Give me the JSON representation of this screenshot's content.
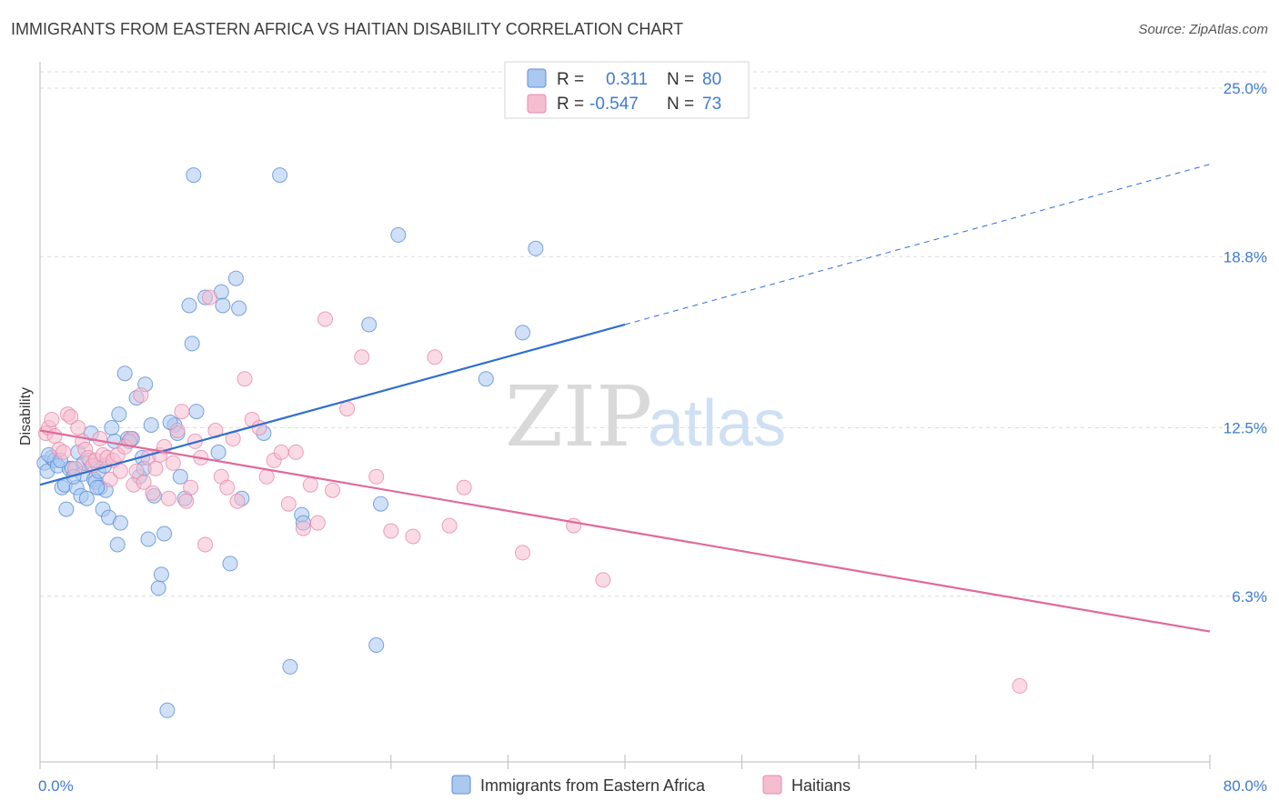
{
  "title": "IMMIGRANTS FROM EASTERN AFRICA VS HAITIAN DISABILITY CORRELATION CHART",
  "source": "Source: ZipAtlas.com",
  "watermark_zip": "ZIP",
  "watermark_atlas": "atlas",
  "colors": {
    "blue": "#5b8fd6",
    "blue_fill": "#aac8f0",
    "blue_line": "#2f6fcf",
    "pink": "#e88aa8",
    "pink_fill": "#f5bdd0",
    "pink_line": "#e0699a",
    "tick_label": "#3f7bd0",
    "grid": "#d8dce4"
  },
  "legend": {
    "row1": {
      "r_label": "R =",
      "r_value": "0.311",
      "n_label": "N =",
      "n_value": "80"
    },
    "row2": {
      "r_label": "R =",
      "r_value": "-0.547",
      "n_label": "N =",
      "n_value": "73"
    }
  },
  "chart_data": {
    "type": "scatter",
    "ylabel": "Disability",
    "xlim": [
      0,
      80
    ],
    "ylim": [
      0,
      26
    ],
    "x_ticks": [
      "0.0%",
      "80.0%"
    ],
    "y_ticks": [
      {
        "value": 25.0,
        "label": "25.0%"
      },
      {
        "value": 18.8,
        "label": "18.8%"
      },
      {
        "value": 12.5,
        "label": "12.5%"
      },
      {
        "value": 6.3,
        "label": "6.3%"
      }
    ],
    "grid": "horizontal dashed",
    "legend_position": "top-center",
    "series": [
      {
        "name": "Immigrants from Eastern Africa",
        "color": "blue",
        "trend": {
          "x0": 0,
          "y0": 10.4,
          "x1": 40,
          "y1": 16.3,
          "dash_to_x": 80,
          "dash_to_y": 22.2
        },
        "points": [
          [
            0.3,
            11.2
          ],
          [
            0.5,
            10.9
          ],
          [
            0.8,
            11.4
          ],
          [
            1.0,
            11.3
          ],
          [
            1.2,
            11.1
          ],
          [
            1.5,
            10.3
          ],
          [
            1.7,
            10.4
          ],
          [
            1.8,
            9.5
          ],
          [
            2.0,
            11.0
          ],
          [
            2.2,
            11.0
          ],
          [
            2.5,
            10.3
          ],
          [
            2.6,
            11.6
          ],
          [
            2.8,
            10.0
          ],
          [
            2.9,
            10.8
          ],
          [
            3.0,
            11.2
          ],
          [
            3.2,
            9.9
          ],
          [
            3.4,
            11.3
          ],
          [
            3.5,
            12.3
          ],
          [
            3.7,
            10.6
          ],
          [
            3.8,
            10.5
          ],
          [
            4.0,
            10.9
          ],
          [
            4.1,
            10.3
          ],
          [
            4.3,
            9.5
          ],
          [
            4.5,
            10.2
          ],
          [
            4.7,
            9.2
          ],
          [
            4.9,
            12.5
          ],
          [
            5.1,
            12.0
          ],
          [
            5.3,
            8.2
          ],
          [
            5.4,
            13.0
          ],
          [
            5.5,
            9.0
          ],
          [
            5.8,
            14.5
          ],
          [
            6.0,
            12.1
          ],
          [
            6.3,
            12.1
          ],
          [
            6.6,
            13.6
          ],
          [
            6.8,
            10.7
          ],
          [
            7.0,
            11.4
          ],
          [
            7.2,
            14.1
          ],
          [
            7.4,
            8.4
          ],
          [
            7.6,
            12.6
          ],
          [
            7.8,
            10.0
          ],
          [
            8.1,
            6.6
          ],
          [
            8.3,
            7.1
          ],
          [
            8.5,
            8.6
          ],
          [
            8.7,
            2.1
          ],
          [
            9.2,
            12.6
          ],
          [
            9.4,
            12.3
          ],
          [
            9.6,
            10.7
          ],
          [
            10.2,
            17.0
          ],
          [
            10.4,
            15.6
          ],
          [
            10.5,
            21.8
          ],
          [
            10.7,
            13.1
          ],
          [
            11.3,
            17.3
          ],
          [
            12.2,
            11.6
          ],
          [
            12.4,
            17.5
          ],
          [
            12.5,
            17.0
          ],
          [
            13.0,
            7.5
          ],
          [
            13.4,
            18.0
          ],
          [
            13.6,
            16.9
          ],
          [
            13.8,
            9.9
          ],
          [
            15.3,
            12.3
          ],
          [
            16.4,
            21.8
          ],
          [
            17.1,
            3.7
          ],
          [
            17.9,
            9.3
          ],
          [
            18.0,
            9.0
          ],
          [
            22.5,
            16.3
          ],
          [
            23.0,
            4.5
          ],
          [
            23.3,
            9.7
          ],
          [
            24.5,
            19.6
          ],
          [
            30.5,
            14.3
          ],
          [
            33.0,
            16.0
          ],
          [
            33.9,
            19.1
          ],
          [
            0.6,
            11.5
          ],
          [
            1.4,
            11.3
          ],
          [
            2.3,
            10.7
          ],
          [
            3.9,
            10.3
          ],
          [
            6.1,
            12.0
          ],
          [
            7.1,
            11.0
          ],
          [
            8.9,
            12.7
          ],
          [
            9.9,
            9.9
          ],
          [
            4.4,
            11.1
          ]
        ]
      },
      {
        "name": "Haitians",
        "color": "pink",
        "trend": {
          "x0": 0,
          "y0": 12.4,
          "x1": 80,
          "y1": 5.0
        },
        "points": [
          [
            0.4,
            12.3
          ],
          [
            0.6,
            12.5
          ],
          [
            0.8,
            12.8
          ],
          [
            1.0,
            12.2
          ],
          [
            1.3,
            11.7
          ],
          [
            1.6,
            11.6
          ],
          [
            1.9,
            13.0
          ],
          [
            2.1,
            12.9
          ],
          [
            2.4,
            11.0
          ],
          [
            2.6,
            12.5
          ],
          [
            2.9,
            12.0
          ],
          [
            3.1,
            11.7
          ],
          [
            3.3,
            11.4
          ],
          [
            3.6,
            11.1
          ],
          [
            3.8,
            11.3
          ],
          [
            4.1,
            12.1
          ],
          [
            4.3,
            11.5
          ],
          [
            4.6,
            11.4
          ],
          [
            4.8,
            10.6
          ],
          [
            5.0,
            11.3
          ],
          [
            5.3,
            11.5
          ],
          [
            5.5,
            10.9
          ],
          [
            5.8,
            11.8
          ],
          [
            6.2,
            12.1
          ],
          [
            6.4,
            10.4
          ],
          [
            6.6,
            10.9
          ],
          [
            6.9,
            13.7
          ],
          [
            7.1,
            10.5
          ],
          [
            7.4,
            11.4
          ],
          [
            7.7,
            10.1
          ],
          [
            7.9,
            11.0
          ],
          [
            8.2,
            11.5
          ],
          [
            8.5,
            11.8
          ],
          [
            8.8,
            9.9
          ],
          [
            9.1,
            11.2
          ],
          [
            9.4,
            12.4
          ],
          [
            9.7,
            13.1
          ],
          [
            10.0,
            9.8
          ],
          [
            10.3,
            10.3
          ],
          [
            10.6,
            12.0
          ],
          [
            11.0,
            11.4
          ],
          [
            11.3,
            8.2
          ],
          [
            11.6,
            17.3
          ],
          [
            12.0,
            12.4
          ],
          [
            12.4,
            10.7
          ],
          [
            12.8,
            10.3
          ],
          [
            13.2,
            12.1
          ],
          [
            13.5,
            9.8
          ],
          [
            14.0,
            14.3
          ],
          [
            14.5,
            12.8
          ],
          [
            15.0,
            12.5
          ],
          [
            15.5,
            10.7
          ],
          [
            16.0,
            11.3
          ],
          [
            16.5,
            11.6
          ],
          [
            17.0,
            9.7
          ],
          [
            17.5,
            11.6
          ],
          [
            18.0,
            8.8
          ],
          [
            18.5,
            10.4
          ],
          [
            19.0,
            9.0
          ],
          [
            19.5,
            16.5
          ],
          [
            20.0,
            10.2
          ],
          [
            21.0,
            13.2
          ],
          [
            22.0,
            15.1
          ],
          [
            23.0,
            10.7
          ],
          [
            24.0,
            8.7
          ],
          [
            25.5,
            8.5
          ],
          [
            27.0,
            15.1
          ],
          [
            28.0,
            8.9
          ],
          [
            29.0,
            10.3
          ],
          [
            33.0,
            7.9
          ],
          [
            36.5,
            8.9
          ],
          [
            38.5,
            6.9
          ],
          [
            67.0,
            3.0
          ]
        ]
      }
    ]
  },
  "bottom_legend": {
    "item1": "Immigrants from Eastern Africa",
    "item2": "Haitians"
  }
}
